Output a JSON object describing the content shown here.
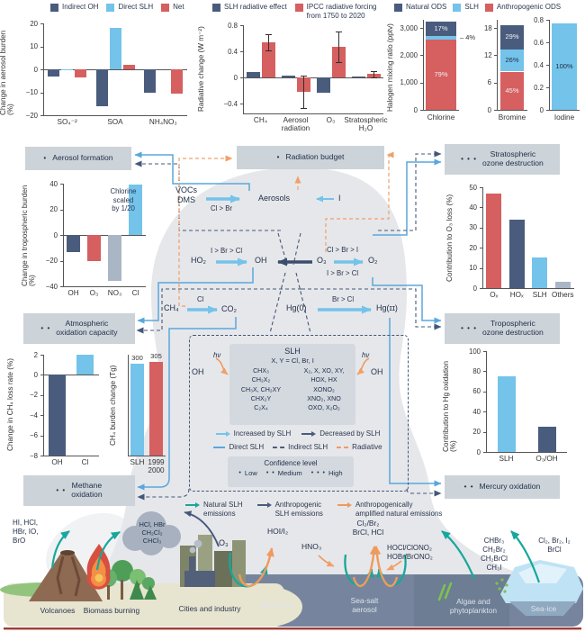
{
  "colors": {
    "darkblue": "#4a5c7d",
    "lightblue": "#74c3ea",
    "red": "#d65f60",
    "grayblue": "#aab6c6",
    "blue": "#5aa7dc",
    "teal": "#17a79c",
    "orange": "#ef9a5e",
    "dome": "#e6e7ea",
    "panel": "#ccd3d9",
    "sea": "#76859d",
    "navy": "#2b3750"
  },
  "halogen": {
    "ylabel": "Halogen mixing ratio (pptv)",
    "legend": [
      {
        "type": "sq",
        "color": "darkblue",
        "label": "Natural ODS"
      },
      {
        "type": "sq",
        "color": "lightblue",
        "label": "SLH"
      },
      {
        "type": "sq",
        "color": "red",
        "label": "Anthropogenic ODS"
      }
    ]
  },
  "chart_data": [
    {
      "type": "bar",
      "title": "Change in aerosol burden",
      "categories": [
        "SO₄⁻²",
        "SOA",
        "NH₄NO₃"
      ],
      "series": [
        {
          "name": "Indirect OH",
          "values": [
            -3,
            -16,
            -10
          ]
        },
        {
          "name": "Direct SLH",
          "values": [
            -0.5,
            18,
            0
          ]
        },
        {
          "name": "Net",
          "values": [
            -3.5,
            2,
            -10.5
          ]
        }
      ],
      "ylabel": "Change in aerosol burden (%)",
      "ylim": [
        -20,
        20
      ]
    },
    {
      "type": "bar",
      "title": "Radiative change",
      "categories": [
        "CH₄",
        "Aerosol radiation",
        "O₃",
        "Stratospheric H₂O"
      ],
      "series": [
        {
          "name": "SLH radiative effect",
          "values": [
            0.09,
            0.03,
            -0.24,
            0.01
          ]
        },
        {
          "name": "IPCC radiative forcing from 1750 to 2020",
          "values": [
            0.54,
            -0.22,
            0.47,
            0.05
          ],
          "errors": [
            0.12,
            0.25,
            0.24,
            0.05
          ]
        }
      ],
      "ylabel": "Radiative change (W m⁻²)",
      "ylim": [
        -0.55,
        0.8
      ]
    },
    {
      "type": "bar",
      "title": "Halogen mixing ratio (pptv)",
      "categories": [
        "Chlorine",
        "Bromine",
        "Iodine"
      ],
      "stacked_pct": {
        "Chlorine": {
          "total": 3250,
          "Anthropogenic ODS": 79,
          "SLH": 4,
          "Natural ODS": 17
        },
        "Bromine": {
          "total": 18.7,
          "Anthropogenic ODS": 45,
          "SLH": 26,
          "Natural ODS": 29
        },
        "Iodine": {
          "total": 0.77,
          "SLH": 100
        }
      }
    },
    {
      "type": "bar",
      "title": "Change in tropospheric burden (%)",
      "categories": [
        "OH",
        "O₃",
        "NO₃",
        "Cl"
      ],
      "values": [
        -13,
        -20,
        -36,
        39
      ],
      "ylim": [
        -40,
        40
      ],
      "note": "Chlorine scaled by 1/20"
    },
    {
      "type": "bar",
      "title": "Contribution to O₃ loss (%)",
      "categories": [
        "Oₓ",
        "HOₓ",
        "SLH",
        "Others"
      ],
      "values": [
        47,
        34,
        15,
        3
      ],
      "ylim": [
        0,
        50
      ]
    },
    {
      "type": "bar",
      "title": "Change in CH₄ loss rate (%)",
      "categories": [
        "OH",
        "Cl"
      ],
      "values": [
        -8,
        2
      ],
      "ylim": [
        -8,
        2
      ]
    },
    {
      "type": "bar",
      "title": "CH₄ burden change (Tg)",
      "categories": [
        "SLH",
        "1999 2000"
      ],
      "values": [
        300,
        305
      ]
    },
    {
      "type": "bar",
      "title": "Contribution to Hg oxidation (%)",
      "categories": [
        "SLH",
        "O₃/OH"
      ],
      "values": [
        75,
        25
      ],
      "ylim": [
        0,
        100
      ]
    }
  ],
  "charts": {
    "aerosol_burden": {
      "type": "grouped",
      "legend": [
        {
          "type": "sq",
          "color": "darkblue",
          "label": "Indirect OH"
        },
        {
          "type": "sq",
          "color": "lightblue",
          "label": "Direct SLH"
        },
        {
          "type": "sq",
          "color": "red",
          "label": "Net"
        }
      ],
      "ylabel": "Change in aerosol burden (%)",
      "ylim": [
        -20,
        20
      ],
      "yticks": [
        20,
        10,
        0,
        -10,
        -20
      ],
      "categories": [
        "SO₄⁻²",
        "SOA",
        "NH₄NO₃"
      ],
      "series": [
        {
          "name": "Indirect OH",
          "color": "darkblue",
          "values": [
            -3,
            -16,
            -10
          ]
        },
        {
          "name": "Direct SLH",
          "color": "lightblue",
          "values": [
            -0.5,
            18,
            0
          ]
        },
        {
          "name": "Net",
          "color": "red",
          "values": [
            -3.5,
            2,
            -10.5
          ]
        }
      ]
    },
    "radiative_change": {
      "type": "grouped",
      "legend": [
        {
          "type": "sq",
          "color": "darkblue",
          "label": "SLH radiative effect"
        },
        {
          "type": "sq",
          "color": "red",
          "label": "IPCC radiative forcing\nfrom 1750 to 2020"
        }
      ],
      "ylabel": "Radiative change (W m⁻²)",
      "ylim": [
        -0.55,
        0.8
      ],
      "yticks": [
        0.8,
        0.4,
        0,
        -0.4
      ],
      "categories": [
        "CH₄",
        "Aerosol\nradiation",
        "O₃",
        "Stratospheric\nH₂O"
      ],
      "series": [
        {
          "name": "SLH radiative effect",
          "color": "darkblue",
          "values": [
            0.09,
            0.03,
            -0.24,
            0.01
          ]
        },
        {
          "name": "IPCC radiative forcing from 1750 to 2020",
          "color": "red",
          "values": [
            0.54,
            -0.22,
            0.47,
            0.05
          ],
          "errors": [
            0.12,
            0.25,
            0.24,
            0.05
          ]
        }
      ]
    },
    "chlorine": {
      "type": "stacked",
      "total": 3250,
      "ylim": [
        0,
        3300
      ],
      "xlabel": "Chlorine",
      "yticks": [
        {
          "v": 3000,
          "label": "3,000"
        },
        {
          "v": 2000,
          "label": "2,000"
        },
        {
          "v": 1000,
          "label": "1,000"
        },
        {
          "v": 0,
          "label": "0"
        }
      ],
      "segments": [
        {
          "name": "Anthropogenic ODS",
          "pct": 79,
          "color": "red",
          "label": "79%",
          "text": "light"
        },
        {
          "name": "SLH",
          "pct": 4,
          "color": "lightblue",
          "label": "4%",
          "callout": true
        },
        {
          "name": "Natural ODS",
          "pct": 17,
          "color": "darkblue",
          "label": "17%",
          "text": "light"
        }
      ]
    },
    "bromine": {
      "type": "stacked",
      "total": 18.7,
      "ylim": [
        0,
        19.8
      ],
      "xlabel": "Bromine",
      "yticks": [
        {
          "v": 18,
          "label": "18"
        },
        {
          "v": 12,
          "label": "12"
        },
        {
          "v": 6,
          "label": "6"
        },
        {
          "v": 0,
          "label": "0"
        }
      ],
      "segments": [
        {
          "name": "Anthropogenic ODS",
          "pct": 45,
          "color": "red",
          "label": "45%",
          "text": "light"
        },
        {
          "name": "SLH",
          "pct": 26,
          "color": "lightblue",
          "label": "26%",
          "text": "dark"
        },
        {
          "name": "Natural ODS",
          "pct": 29,
          "color": "darkblue",
          "label": "29%",
          "text": "light"
        }
      ]
    },
    "iodine": {
      "type": "stacked",
      "total": 0.77,
      "ylim": [
        0,
        0.8
      ],
      "xlabel": "Iodine",
      "yticks": [
        {
          "v": 0.8,
          "label": "0.8"
        },
        {
          "v": 0.6,
          "label": "0.6"
        },
        {
          "v": 0.4,
          "label": "0.4"
        },
        {
          "v": 0.2,
          "label": "0.2"
        },
        {
          "v": 0,
          "label": "0"
        }
      ],
      "segments": [
        {
          "name": "SLH",
          "pct": 100,
          "color": "lightblue",
          "label": "100%",
          "text": "dark"
        }
      ]
    },
    "tropospheric_burden": {
      "type": "single",
      "ylabel": "Change in tropospheric burden (%)",
      "ylim": [
        -40,
        40
      ],
      "yticks": [
        40,
        20,
        0,
        -20,
        -40
      ],
      "categories": [
        "OH",
        "O₃",
        "NO₃",
        "Cl"
      ],
      "values": [
        -13,
        -20,
        -36,
        39
      ],
      "colors": [
        "darkblue",
        "red",
        "grayblue",
        "lightblue"
      ],
      "annotation": "Chlorine\nscaled\nby 1/20"
    },
    "o3_loss": {
      "type": "single",
      "ylabel": "Contribution to O₃ loss (%)",
      "ylim": [
        0,
        50
      ],
      "yticks": [
        50,
        40,
        30,
        20,
        10,
        0
      ],
      "categories": [
        "Oₓ",
        "HOₓ",
        "SLH",
        "Others"
      ],
      "values": [
        47,
        34,
        15,
        3
      ],
      "colors": [
        "red",
        "darkblue",
        "lightblue",
        "grayblue"
      ]
    },
    "ch4_loss_rate": {
      "type": "single",
      "ylabel": "Change in CH₄ loss rate (%)",
      "ylim": [
        -8,
        2
      ],
      "yticks": [
        2,
        0,
        -2,
        -4,
        -6,
        -8
      ],
      "categories": [
        "OH",
        "Cl"
      ],
      "values": [
        -8,
        2
      ],
      "colors": [
        "darkblue",
        "lightblue"
      ]
    },
    "ch4_burden": {
      "type": "single",
      "ylabel": "CH₄ burden change (Tg)",
      "ylim": [
        0,
        330
      ],
      "yticks": [],
      "categories": [
        "SLH",
        "1999\n2000"
      ],
      "values": [
        300,
        305
      ],
      "colors": [
        "lightblue",
        "red"
      ],
      "value_labels": [
        "300",
        "305"
      ]
    },
    "hg_oxidation": {
      "type": "single",
      "ylabel": "Contribution to Hg oxidation (%)",
      "ylim": [
        0,
        100
      ],
      "yticks": [
        100,
        80,
        60,
        40,
        20,
        0
      ],
      "categories": [
        "SLH",
        "O₃/OH"
      ],
      "values": [
        75,
        25
      ],
      "colors": [
        "lightblue",
        "darkblue"
      ]
    }
  },
  "boxes": {
    "aerosol_formation": {
      "dots": "•",
      "label": "Aerosol formation"
    },
    "radiation_budget": {
      "dots": "•",
      "label": "Radiation budget"
    },
    "stratospheric_ozone": {
      "dots": "• • •",
      "label": "Stratospheric\nozone destruction"
    },
    "atmospheric_oxidation": {
      "dots": "• •",
      "label": "Atmospheric\noxidation capacity"
    },
    "tropospheric_ozone": {
      "dots": "• • •",
      "label": "Tropospheric\nozone destruction"
    },
    "methane_oxidation": {
      "dots": "• •",
      "label": "Methane\noxidation"
    },
    "mercury_oxidation": {
      "dots": "• •",
      "label": "Mercury oxidation"
    }
  },
  "reactions": {
    "vocs": "VOCs\nDMS",
    "vocs_label": "Cl > Br",
    "aerosols": "Aerosols",
    "iodine": "I",
    "ho2": "HO₂",
    "ho2_label": "I > Br > Cl",
    "oh": "OH",
    "o3": "O₃",
    "o3_label_top": "Cl > Br > I",
    "o3_label_bottom": "I > Br > Cl",
    "o2": "O₂",
    "ch4": "CH₄",
    "ch4_label": "Cl",
    "co2": "CO₂",
    "hg0": "Hg(0)",
    "hg_label": "Br > Cl",
    "hg2": "Hg(ɪɪ)"
  },
  "slh": {
    "title": "SLH",
    "subtitle": "X, Y = Cl, Br, I",
    "left": [
      "CHX₃",
      "CH₂X₂",
      "CH₃X, CH₂XY",
      "CHX₂Y",
      "C₂X₄"
    ],
    "right": [
      "X₂, X, XO, XY,",
      "HOX, HX",
      "XONO₂",
      "XNO₂, XNO",
      "OXO, X₂O₂"
    ],
    "hv": "hν",
    "oh": "OH"
  },
  "arrow_legend": {
    "row1": [
      {
        "type": "arrow",
        "color": "lightblue",
        "label": "Increased by SLH"
      },
      {
        "type": "arrow",
        "color": "darkblue",
        "label": "Decreased by SLH"
      }
    ],
    "row2": [
      {
        "type": "line",
        "color": "blue",
        "label": "Direct SLH"
      },
      {
        "type": "dash",
        "color": "darkblue",
        "label": "Indirect SLH"
      },
      {
        "type": "dash",
        "color": "orange",
        "label": "Radiative"
      }
    ]
  },
  "confidence": {
    "title": "Confidence level",
    "items": [
      {
        "dots": "•",
        "label": "Low"
      },
      {
        "dots": "• •",
        "label": "Medium"
      },
      {
        "dots": "• • •",
        "label": "High"
      }
    ]
  },
  "emissions_legend": [
    {
      "type": "arrow",
      "color": "teal",
      "label": "Natural SLH\nemissions"
    },
    {
      "type": "arrow",
      "color": "darkblue",
      "label": "Anthropogenic\nSLH emissions"
    },
    {
      "type": "arrow",
      "color": "orange",
      "label": "Anthropogenically\namplified natural emissions"
    }
  ],
  "scene": {
    "volcano_chems": "HI, HCl,\nHBr, IO,\nBrO",
    "cloud": "HCl, HBr\nCH₂Cl₂\nCHCl₃",
    "o3": "O₃",
    "hoi": "HOI/I₂",
    "hno3": "HNO₃",
    "cl2br2": "Cl₂/Br₂\nBrCl, HCl",
    "hocl": "HOCl/ClONO₂\nHOBr/BrONO₂",
    "organics": "CHBr₃\nCH₂Br₂\nCH₂BrCl\nCH₃I",
    "seaice_chems": "Cl₂, Br₂, I₂\nBrCl",
    "labels": {
      "volcanoes": "Volcanoes",
      "biomass": "Biomass burning",
      "cities": "Cities and industry",
      "seawater": "Sea-water",
      "seasalt": "Sea-salt\naerosol",
      "algae": "Algae and\nphytoplankton",
      "seaice": "Sea-ice"
    }
  }
}
